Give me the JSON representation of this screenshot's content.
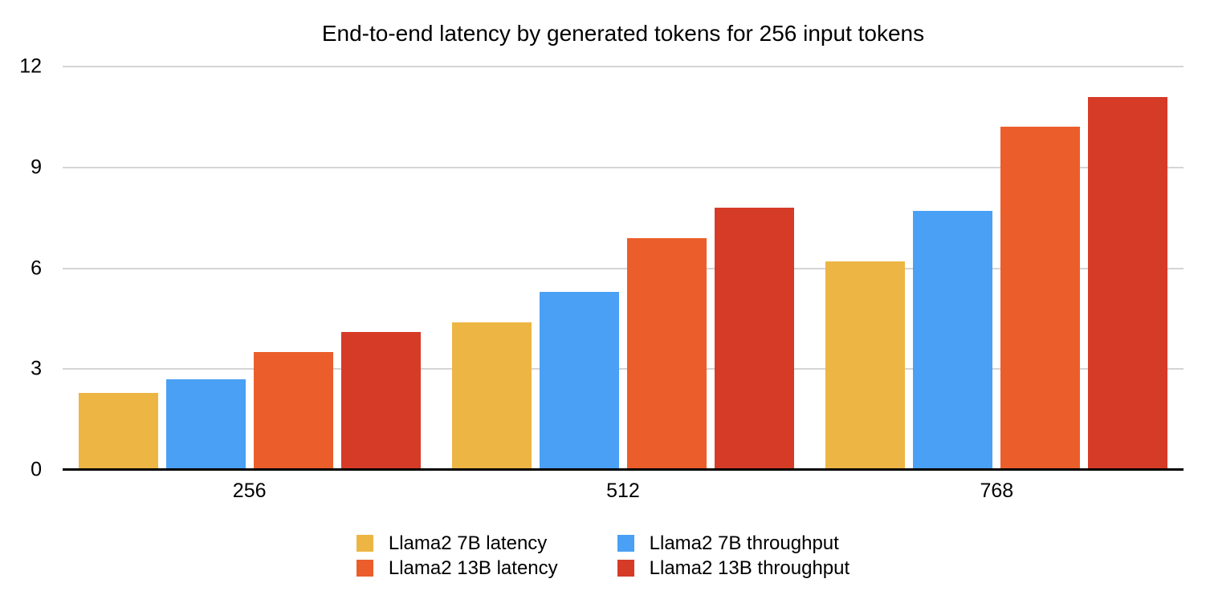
{
  "title": "End-to-end latency by generated tokens for 256 input tokens",
  "chart_data": {
    "type": "bar",
    "title": "End-to-end latency by generated tokens for 256 input tokens",
    "categories": [
      "256",
      "512",
      "768"
    ],
    "series": [
      {
        "name": "Llama2 7B latency",
        "color": "#EDB543",
        "values": [
          2.3,
          4.4,
          6.2
        ]
      },
      {
        "name": "Llama2 7B throughput",
        "color": "#4AA0F4",
        "values": [
          2.7,
          5.3,
          7.7
        ]
      },
      {
        "name": "Llama2 13B latency",
        "color": "#EB5E2B",
        "values": [
          3.5,
          6.9,
          10.2
        ]
      },
      {
        "name": "Llama2 13B throughput",
        "color": "#D53B27",
        "values": [
          4.1,
          7.8,
          11.1
        ]
      }
    ],
    "xlabel": "",
    "ylabel": "",
    "ylim": [
      0,
      12
    ],
    "yticks": [
      0,
      3,
      6,
      9,
      12
    ],
    "grid": true,
    "grid_color": "#d5d5d5",
    "axis_line_color": "#000000",
    "text_color": "#000000",
    "background_color": "#ffffff",
    "legend_position": "bottom",
    "legend_columns": 2
  }
}
